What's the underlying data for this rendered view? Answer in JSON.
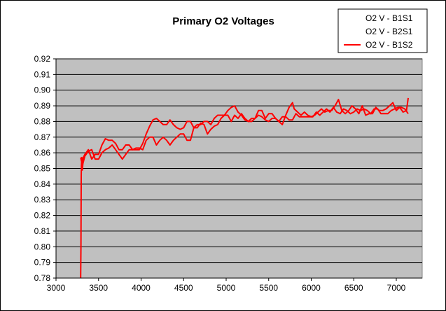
{
  "chart_data": {
    "type": "line",
    "title": "Primary O2 Voltages",
    "xlabel": "",
    "ylabel": "",
    "xlim": [
      3000,
      7000
    ],
    "ylim": [
      0.78,
      0.92
    ],
    "x_ticks": [
      3000,
      3500,
      4000,
      4500,
      5000,
      5500,
      6000,
      6500,
      7000
    ],
    "y_ticks": [
      0.78,
      0.79,
      0.8,
      0.81,
      0.82,
      0.83,
      0.84,
      0.85,
      0.86,
      0.87,
      0.88,
      0.89,
      0.9,
      0.91,
      0.92
    ],
    "y_decimals": 2,
    "grid": "horizontal major",
    "plot_background": "#c0c0c0",
    "legend_position": "top-right",
    "series": [
      {
        "name": "O2 V - B1S1",
        "color": "#ffffff",
        "points": [
          [
            3290,
            0.849
          ],
          [
            3310,
            0.85
          ]
        ]
      },
      {
        "name": "O2 V - B2S1",
        "color": "#ffffff",
        "points": [
          [
            3290,
            0.849
          ],
          [
            3310,
            0.85
          ]
        ]
      },
      {
        "name": "O2 V - B1S2",
        "color": "#ff0000",
        "points": [
          [
            3290,
            0.78
          ],
          [
            3293,
            0.8
          ],
          [
            3296,
            0.845
          ],
          [
            3299,
            0.852
          ],
          [
            3303,
            0.857
          ],
          [
            3310,
            0.849
          ],
          [
            3320,
            0.857
          ],
          [
            3340,
            0.859
          ],
          [
            3380,
            0.862
          ],
          [
            3420,
            0.856
          ],
          [
            3460,
            0.859
          ],
          [
            3500,
            0.859
          ],
          [
            3540,
            0.865
          ],
          [
            3580,
            0.869
          ],
          [
            3620,
            0.868
          ],
          [
            3660,
            0.868
          ],
          [
            3700,
            0.866
          ],
          [
            3740,
            0.862
          ],
          [
            3780,
            0.862
          ],
          [
            3820,
            0.865
          ],
          [
            3860,
            0.865
          ],
          [
            3900,
            0.862
          ],
          [
            3940,
            0.862
          ],
          [
            3980,
            0.862
          ],
          [
            4020,
            0.866
          ],
          [
            4060,
            0.872
          ],
          [
            4100,
            0.877
          ],
          [
            4140,
            0.881
          ],
          [
            4180,
            0.882
          ],
          [
            4220,
            0.88
          ],
          [
            4260,
            0.878
          ],
          [
            4300,
            0.878
          ],
          [
            4340,
            0.881
          ],
          [
            4380,
            0.878
          ],
          [
            4420,
            0.876
          ],
          [
            4460,
            0.875
          ],
          [
            4500,
            0.876
          ],
          [
            4540,
            0.88
          ],
          [
            4580,
            0.88
          ],
          [
            4620,
            0.876
          ],
          [
            4660,
            0.878
          ],
          [
            4700,
            0.878
          ],
          [
            4740,
            0.88
          ],
          [
            4780,
            0.88
          ],
          [
            4820,
            0.878
          ],
          [
            4860,
            0.882
          ],
          [
            4900,
            0.884
          ],
          [
            4940,
            0.884
          ],
          [
            4980,
            0.884
          ],
          [
            5020,
            0.887
          ],
          [
            5060,
            0.889
          ],
          [
            5100,
            0.89
          ],
          [
            5140,
            0.886
          ],
          [
            5180,
            0.884
          ],
          [
            5220,
            0.881
          ],
          [
            5260,
            0.88
          ],
          [
            5300,
            0.882
          ],
          [
            5340,
            0.882
          ],
          [
            5380,
            0.884
          ],
          [
            5420,
            0.883
          ],
          [
            5460,
            0.881
          ],
          [
            5500,
            0.88
          ],
          [
            5540,
            0.882
          ],
          [
            5580,
            0.882
          ],
          [
            5620,
            0.88
          ],
          [
            5660,
            0.878
          ],
          [
            5700,
            0.884
          ],
          [
            5740,
            0.889
          ],
          [
            5780,
            0.892
          ],
          [
            5800,
            0.888
          ],
          [
            5840,
            0.886
          ],
          [
            5880,
            0.884
          ],
          [
            5920,
            0.886
          ],
          [
            5960,
            0.884
          ],
          [
            6000,
            0.883
          ],
          [
            6040,
            0.884
          ],
          [
            6080,
            0.886
          ],
          [
            6120,
            0.888
          ],
          [
            6160,
            0.886
          ],
          [
            6200,
            0.887
          ],
          [
            6240,
            0.887
          ],
          [
            6280,
            0.89
          ],
          [
            6320,
            0.894
          ],
          [
            6360,
            0.887
          ],
          [
            6400,
            0.885
          ],
          [
            6440,
            0.887
          ],
          [
            6480,
            0.89
          ],
          [
            6520,
            0.888
          ],
          [
            6560,
            0.885
          ],
          [
            6600,
            0.89
          ],
          [
            6640,
            0.884
          ],
          [
            6680,
            0.885
          ],
          [
            6720,
            0.885
          ],
          [
            6760,
            0.889
          ],
          [
            6800,
            0.887
          ],
          [
            6840,
            0.887
          ],
          [
            6880,
            0.888
          ],
          [
            6920,
            0.89
          ],
          [
            6960,
            0.892
          ],
          [
            7000,
            0.887
          ],
          [
            7040,
            0.889
          ],
          [
            7080,
            0.886
          ],
          [
            7120,
            0.887
          ],
          [
            7140,
            0.895
          ]
        ]
      },
      {
        "name": "",
        "color": "#ff0000",
        "points": [
          [
            3290,
            0.857
          ],
          [
            3310,
            0.852
          ],
          [
            3340,
            0.858
          ],
          [
            3380,
            0.861
          ],
          [
            3420,
            0.862
          ],
          [
            3460,
            0.856
          ],
          [
            3500,
            0.856
          ],
          [
            3540,
            0.86
          ],
          [
            3580,
            0.862
          ],
          [
            3620,
            0.863
          ],
          [
            3660,
            0.865
          ],
          [
            3700,
            0.862
          ],
          [
            3740,
            0.859
          ],
          [
            3780,
            0.856
          ],
          [
            3820,
            0.859
          ],
          [
            3860,
            0.862
          ],
          [
            3900,
            0.862
          ],
          [
            3940,
            0.863
          ],
          [
            3980,
            0.863
          ],
          [
            4020,
            0.862
          ],
          [
            4060,
            0.868
          ],
          [
            4100,
            0.87
          ],
          [
            4140,
            0.87
          ],
          [
            4180,
            0.865
          ],
          [
            4220,
            0.868
          ],
          [
            4260,
            0.87
          ],
          [
            4300,
            0.868
          ],
          [
            4340,
            0.865
          ],
          [
            4380,
            0.868
          ],
          [
            4420,
            0.87
          ],
          [
            4460,
            0.872
          ],
          [
            4500,
            0.872
          ],
          [
            4540,
            0.868
          ],
          [
            4580,
            0.868
          ],
          [
            4620,
            0.876
          ],
          [
            4660,
            0.876
          ],
          [
            4700,
            0.879
          ],
          [
            4740,
            0.878
          ],
          [
            4780,
            0.872
          ],
          [
            4820,
            0.875
          ],
          [
            4860,
            0.877
          ],
          [
            4900,
            0.878
          ],
          [
            4940,
            0.882
          ],
          [
            4980,
            0.884
          ],
          [
            5020,
            0.884
          ],
          [
            5060,
            0.88
          ],
          [
            5100,
            0.884
          ],
          [
            5140,
            0.882
          ],
          [
            5180,
            0.885
          ],
          [
            5220,
            0.882
          ],
          [
            5260,
            0.88
          ],
          [
            5300,
            0.88
          ],
          [
            5340,
            0.882
          ],
          [
            5380,
            0.887
          ],
          [
            5420,
            0.887
          ],
          [
            5460,
            0.882
          ],
          [
            5500,
            0.885
          ],
          [
            5540,
            0.885
          ],
          [
            5580,
            0.882
          ],
          [
            5620,
            0.88
          ],
          [
            5660,
            0.883
          ],
          [
            5700,
            0.883
          ],
          [
            5740,
            0.881
          ],
          [
            5780,
            0.881
          ],
          [
            5820,
            0.885
          ],
          [
            5860,
            0.883
          ],
          [
            5900,
            0.883
          ],
          [
            5940,
            0.883
          ],
          [
            5980,
            0.883
          ],
          [
            6020,
            0.883
          ],
          [
            6060,
            0.886
          ],
          [
            6100,
            0.884
          ],
          [
            6140,
            0.886
          ],
          [
            6180,
            0.888
          ],
          [
            6220,
            0.886
          ],
          [
            6260,
            0.889
          ],
          [
            6300,
            0.886
          ],
          [
            6340,
            0.885
          ],
          [
            6380,
            0.888
          ],
          [
            6420,
            0.887
          ],
          [
            6460,
            0.885
          ],
          [
            6500,
            0.886
          ],
          [
            6540,
            0.888
          ],
          [
            6580,
            0.887
          ],
          [
            6620,
            0.888
          ],
          [
            6660,
            0.887
          ],
          [
            6700,
            0.885
          ],
          [
            6740,
            0.888
          ],
          [
            6780,
            0.888
          ],
          [
            6820,
            0.885
          ],
          [
            6860,
            0.885
          ],
          [
            6900,
            0.885
          ],
          [
            6940,
            0.887
          ],
          [
            6980,
            0.888
          ],
          [
            7020,
            0.889
          ],
          [
            7060,
            0.889
          ],
          [
            7100,
            0.888
          ],
          [
            7140,
            0.885
          ]
        ]
      }
    ]
  }
}
